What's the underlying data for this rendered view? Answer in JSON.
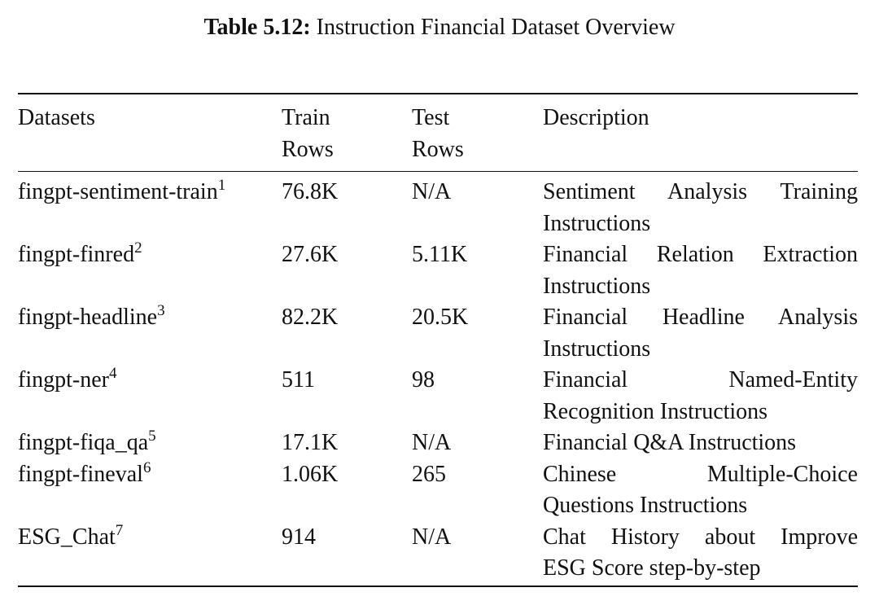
{
  "caption": {
    "label": "Table 5.12:",
    "text": " Instruction Financial Dataset Overview"
  },
  "table": {
    "headers": {
      "datasets": "Datasets",
      "train_line1": "Train",
      "train_line2": "Rows",
      "test_line1": "Test",
      "test_line2": "Rows",
      "description": "Description"
    },
    "rows": [
      {
        "name": "fingpt-sentiment-train",
        "footnote": "1",
        "train": "76.8K",
        "test": "N/A",
        "desc_line1": "Sentiment Analysis Training",
        "desc_line2": "Instructions"
      },
      {
        "name": "fingpt-finred",
        "footnote": "2",
        "train": "27.6K",
        "test": "5.11K",
        "desc_line1": "Financial Relation Extraction",
        "desc_line2": "Instructions"
      },
      {
        "name": "fingpt-headline",
        "footnote": "3",
        "train": "82.2K",
        "test": "20.5K",
        "desc_line1": "Financial Headline Analysis",
        "desc_line2": "Instructions"
      },
      {
        "name": "fingpt-ner",
        "footnote": "4",
        "train": "511",
        "test": "98",
        "desc_line1": "Financial Named-Entity",
        "desc_line2": "Recognition Instructions"
      },
      {
        "name": "fingpt-fiqa_qa",
        "footnote": "5",
        "train": "17.1K",
        "test": "N/A",
        "desc_line1": "Financial Q&A Instructions",
        "desc_line2": ""
      },
      {
        "name": "fingpt-fineval",
        "footnote": "6",
        "train": "1.06K",
        "test": "265",
        "desc_line1": "Chinese Multiple-Choice",
        "desc_line2": "Questions Instructions"
      },
      {
        "name": "ESG_Chat",
        "footnote": "7",
        "train": "914",
        "test": "N/A",
        "desc_line1": "Chat History about Improve",
        "desc_line2": "ESG Score step-by-step"
      }
    ]
  }
}
